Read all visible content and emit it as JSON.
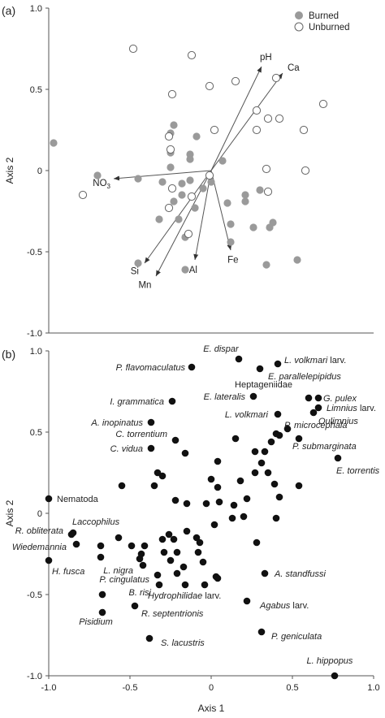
{
  "chart_data": [
    {
      "panel_label": "(a)",
      "type": "scatter",
      "ylabel": "Axis 2",
      "xlim": [
        -1.0,
        1.0
      ],
      "ylim": [
        -1.0,
        1.0
      ],
      "x_ticks": [],
      "y_ticks": [
        "1.0",
        "0.5",
        "0",
        "-0.5",
        "-1.0"
      ],
      "legend": {
        "position": "top-right",
        "entries": [
          "Burned",
          "Unburned"
        ]
      },
      "series": [
        {
          "name": "Burned",
          "marker": "filled-grey",
          "color": "#9a9a9a",
          "points": [
            [
              -0.97,
              0.17
            ],
            [
              -0.7,
              -0.03
            ],
            [
              -0.45,
              -0.05
            ],
            [
              -0.45,
              -0.57
            ],
            [
              -0.3,
              -0.07
            ],
            [
              -0.23,
              0.28
            ],
            [
              -0.25,
              0.23
            ],
            [
              -0.25,
              0.11
            ],
            [
              -0.25,
              0.02
            ],
            [
              -0.18,
              -0.08
            ],
            [
              -0.13,
              0.1
            ],
            [
              -0.13,
              0.07
            ],
            [
              -0.09,
              0.21
            ],
            [
              -0.13,
              -0.06
            ],
            [
              -0.18,
              -0.15
            ],
            [
              -0.23,
              -0.19
            ],
            [
              -0.32,
              -0.3
            ],
            [
              -0.2,
              -0.3
            ],
            [
              -0.1,
              -0.23
            ],
            [
              -0.16,
              -0.41
            ],
            [
              -0.16,
              -0.61
            ],
            [
              0.07,
              0.06
            ],
            [
              0.0,
              -0.07
            ],
            [
              -0.05,
              -0.11
            ],
            [
              0.1,
              -0.2
            ],
            [
              0.21,
              -0.19
            ],
            [
              0.12,
              -0.33
            ],
            [
              0.12,
              -0.44
            ],
            [
              0.21,
              -0.15
            ],
            [
              0.26,
              -0.35
            ],
            [
              0.3,
              -0.12
            ],
            [
              0.36,
              -0.35
            ],
            [
              0.38,
              -0.32
            ],
            [
              0.34,
              -0.58
            ],
            [
              0.53,
              -0.55
            ]
          ]
        },
        {
          "name": "Unburned",
          "marker": "open-circle",
          "color": "#ffffff",
          "points": [
            [
              -0.48,
              0.75
            ],
            [
              -0.12,
              0.71
            ],
            [
              -0.24,
              0.47
            ],
            [
              -0.01,
              0.52
            ],
            [
              0.15,
              0.55
            ],
            [
              0.4,
              0.57
            ],
            [
              0.69,
              0.41
            ],
            [
              0.28,
              0.37
            ],
            [
              0.35,
              0.32
            ],
            [
              -0.26,
              0.21
            ],
            [
              -0.25,
              0.13
            ],
            [
              0.02,
              0.25
            ],
            [
              0.28,
              0.25
            ],
            [
              0.42,
              0.32
            ],
            [
              0.57,
              0.25
            ],
            [
              0.34,
              0.01
            ],
            [
              0.58,
              0.0
            ],
            [
              -0.79,
              -0.15
            ],
            [
              -0.01,
              -0.03
            ],
            [
              -0.24,
              -0.11
            ],
            [
              -0.26,
              -0.23
            ],
            [
              -0.12,
              -0.16
            ],
            [
              0.35,
              -0.13
            ],
            [
              -0.14,
              -0.39
            ]
          ]
        }
      ],
      "vectors": [
        {
          "label": "pH",
          "x": 0.31,
          "y": 0.64
        },
        {
          "label": "Ca",
          "x": 0.44,
          "y": 0.6
        },
        {
          "label": "NO",
          "label_sub": "3",
          "x": -0.6,
          "y": -0.05
        },
        {
          "label": "Si",
          "x": -0.41,
          "y": -0.57
        },
        {
          "label": "Mn",
          "x": -0.34,
          "y": -0.65
        },
        {
          "label": "Al",
          "x": -0.1,
          "y": -0.55
        },
        {
          "label": "Fe",
          "x": 0.12,
          "y": -0.49
        }
      ]
    },
    {
      "panel_label": "(b)",
      "type": "scatter",
      "xlabel": "Axis 1",
      "ylabel": "Axis 2",
      "xlim": [
        -1.0,
        1.0
      ],
      "ylim": [
        -1.0,
        1.0
      ],
      "x_ticks": [
        "-1.0",
        "-0.5",
        "0",
        "0.5",
        "1.0"
      ],
      "y_ticks": [
        "1.0",
        "0.5",
        "0",
        "-0.5",
        "-1.0"
      ],
      "labelled_points": [
        {
          "label": "E. dispar",
          "x": 0.17,
          "y": 0.95
        },
        {
          "label": "L. volkmari larv.",
          "x": 0.41,
          "y": 0.92
        },
        {
          "label": "P. flavomaculatus",
          "x": -0.12,
          "y": 0.9
        },
        {
          "label": "E. parallelepipidus",
          "x": 0.3,
          "y": 0.89
        },
        {
          "label": "Heptageniidae",
          "x": 0.6,
          "y": 0.71
        },
        {
          "label": "G. pulex",
          "x": 0.66,
          "y": 0.71
        },
        {
          "label": "Limnius larv.",
          "x": 0.66,
          "y": 0.65
        },
        {
          "label": "Oulimnius",
          "x": 0.63,
          "y": 0.62
        },
        {
          "label": "E. lateralis",
          "x": 0.26,
          "y": 0.72
        },
        {
          "label": "I. grammatica",
          "x": -0.24,
          "y": 0.69
        },
        {
          "label": "L. volkmari",
          "x": 0.41,
          "y": 0.61
        },
        {
          "label": "A. inopinatus",
          "x": -0.37,
          "y": 0.56
        },
        {
          "label": "P. microcephala",
          "x": 0.47,
          "y": 0.52
        },
        {
          "label": "C. torrentium",
          "x": -0.22,
          "y": 0.45
        },
        {
          "label": "P. submarginata",
          "x": 0.54,
          "y": 0.46
        },
        {
          "label": "C. vidua",
          "x": -0.37,
          "y": 0.4
        },
        {
          "label": "E. torrentis",
          "x": 0.78,
          "y": 0.34
        },
        {
          "label": "Nematoda",
          "x": -1.0,
          "y": 0.09
        },
        {
          "label": "Laccophilus",
          "x": -0.85,
          "y": -0.12
        },
        {
          "label": "R. obliterata",
          "x": -0.86,
          "y": -0.13
        },
        {
          "label": "Wiedemannia",
          "x": -0.83,
          "y": -0.19
        },
        {
          "label": "H. fusca",
          "x": -1.0,
          "y": -0.29
        },
        {
          "label": "L. nigra",
          "x": -0.42,
          "y": -0.32
        },
        {
          "label": "P. cingulatus",
          "x": -0.33,
          "y": -0.38
        },
        {
          "label": "B. risi",
          "x": -0.32,
          "y": -0.44
        },
        {
          "label": "Hydrophilidae larv.",
          "x": -0.67,
          "y": -0.5
        },
        {
          "label": "A. standfussi",
          "x": 0.33,
          "y": -0.37
        },
        {
          "label": "R. septentrionis",
          "x": -0.47,
          "y": -0.57
        },
        {
          "label": "Agabus larv.",
          "x": 0.22,
          "y": -0.54
        },
        {
          "label": "Pisidium",
          "x": -0.67,
          "y": -0.61
        },
        {
          "label": "P. geniculata",
          "x": 0.31,
          "y": -0.73
        },
        {
          "label": "S. lacustris",
          "x": -0.38,
          "y": -0.77
        },
        {
          "label": "L. hippopus",
          "x": 0.76,
          "y": -1.0
        }
      ],
      "unlabelled_points": [
        [
          -0.33,
          0.25
        ],
        [
          -0.3,
          0.23
        ],
        [
          -0.55,
          0.17
        ],
        [
          -0.35,
          0.17
        ],
        [
          -0.22,
          0.08
        ],
        [
          -0.15,
          0.06
        ],
        [
          -0.03,
          0.06
        ],
        [
          0.04,
          0.16
        ],
        [
          0.04,
          0.32
        ],
        [
          0.0,
          0.21
        ],
        [
          0.05,
          0.07
        ],
        [
          0.14,
          0.05
        ],
        [
          0.22,
          0.09
        ],
        [
          0.18,
          0.2
        ],
        [
          0.27,
          0.25
        ],
        [
          0.35,
          0.25
        ],
        [
          0.39,
          0.18
        ],
        [
          0.42,
          0.1
        ],
        [
          0.54,
          0.17
        ],
        [
          0.31,
          0.31
        ],
        [
          0.27,
          0.38
        ],
        [
          0.33,
          0.38
        ],
        [
          0.37,
          0.44
        ],
        [
          0.4,
          0.49
        ],
        [
          0.42,
          0.48
        ],
        [
          0.15,
          0.46
        ],
        [
          -0.16,
          0.37
        ],
        [
          0.02,
          -0.07
        ],
        [
          0.13,
          -0.03
        ],
        [
          0.2,
          -0.02
        ],
        [
          0.28,
          -0.18
        ],
        [
          0.4,
          -0.03
        ],
        [
          -0.57,
          -0.15
        ],
        [
          -0.49,
          -0.2
        ],
        [
          -0.41,
          -0.2
        ],
        [
          -0.3,
          -0.16
        ],
        [
          -0.26,
          -0.13
        ],
        [
          -0.23,
          -0.16
        ],
        [
          -0.15,
          -0.11
        ],
        [
          -0.09,
          -0.15
        ],
        [
          -0.07,
          -0.18
        ],
        [
          -0.08,
          -0.24
        ],
        [
          -0.21,
          -0.24
        ],
        [
          -0.29,
          -0.24
        ],
        [
          -0.25,
          -0.29
        ],
        [
          -0.05,
          -0.3
        ],
        [
          -0.04,
          -0.44
        ],
        [
          -0.16,
          -0.44
        ],
        [
          0.03,
          -0.39
        ],
        [
          0.04,
          -0.4
        ],
        [
          -0.68,
          -0.2
        ],
        [
          -0.68,
          -0.27
        ],
        [
          -0.44,
          -0.28
        ],
        [
          -0.43,
          -0.25
        ],
        [
          -0.21,
          -0.37
        ],
        [
          -0.17,
          -0.33
        ]
      ]
    }
  ]
}
